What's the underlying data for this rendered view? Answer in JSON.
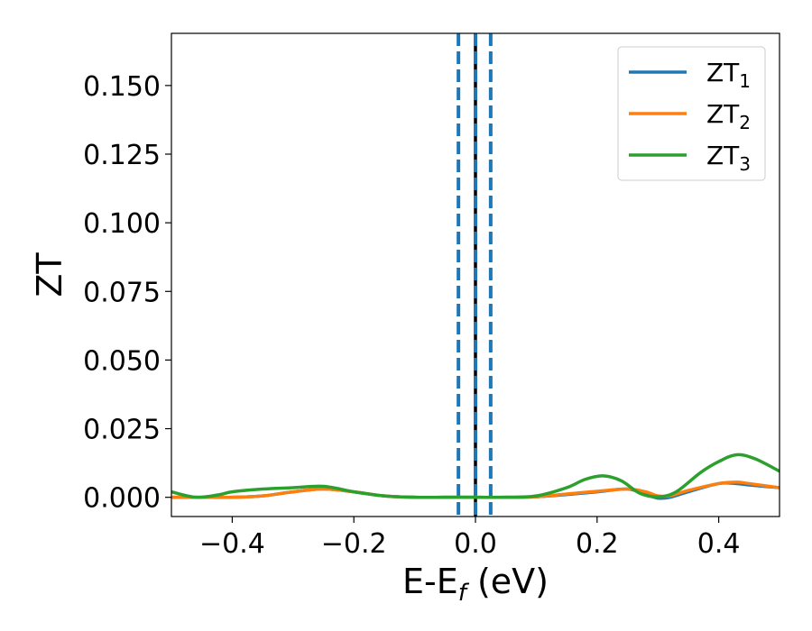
{
  "chart_data": {
    "type": "line",
    "title": "",
    "xlabel": "E-E",
    "xlabel_sub": "f",
    "xlabel_unit": " (eV)",
    "ylabel": "ZT",
    "xlim": [
      -0.5,
      0.5
    ],
    "ylim": [
      -0.007,
      0.169
    ],
    "x_ticks": [
      -0.4,
      -0.2,
      0.0,
      0.2,
      0.4
    ],
    "x_tick_labels": [
      "−0.4",
      "−0.2",
      "0.0",
      "0.2",
      "0.4"
    ],
    "y_ticks": [
      0.0,
      0.025,
      0.05,
      0.075,
      0.1,
      0.125,
      0.15
    ],
    "y_tick_labels": [
      "0.000",
      "0.025",
      "0.050",
      "0.075",
      "0.100",
      "0.125",
      "0.150"
    ],
    "grid": false,
    "legend_position": "top-right",
    "vertical_lines": [
      {
        "x": 0.0,
        "color": "#000000",
        "style": "solid"
      },
      {
        "x": -0.028,
        "color": "#1f77b4",
        "style": "dashed"
      },
      {
        "x": 0.0,
        "color": "#1f77b4",
        "style": "dashed"
      },
      {
        "x": 0.025,
        "color": "#1f77b4",
        "style": "dashed"
      }
    ],
    "series": [
      {
        "name": "ZT",
        "sub": "1",
        "color": "#1f77b4",
        "x": [
          -0.5,
          -0.45,
          -0.4,
          -0.35,
          -0.3,
          -0.25,
          -0.2,
          -0.15,
          -0.1,
          -0.05,
          0.0,
          0.05,
          0.1,
          0.15,
          0.2,
          0.25,
          0.28,
          0.3,
          0.32,
          0.35,
          0.4,
          0.43,
          0.45,
          0.5
        ],
        "y": [
          0.0,
          0.0,
          0.0,
          0.0005,
          0.002,
          0.003,
          0.002,
          0.0005,
          0.0,
          0.0,
          0.0,
          0.0,
          0.0002,
          0.001,
          0.002,
          0.003,
          0.001,
          -0.0003,
          0.0,
          0.002,
          0.005,
          0.005,
          0.0045,
          0.0035
        ]
      },
      {
        "name": "ZT",
        "sub": "2",
        "color": "#ff7f0e",
        "x": [
          -0.5,
          -0.45,
          -0.4,
          -0.35,
          -0.3,
          -0.25,
          -0.2,
          -0.15,
          -0.1,
          -0.05,
          0.0,
          0.05,
          0.1,
          0.15,
          0.2,
          0.25,
          0.28,
          0.3,
          0.32,
          0.35,
          0.4,
          0.43,
          0.45,
          0.5
        ],
        "y": [
          0.0,
          0.0,
          0.0,
          0.0005,
          0.002,
          0.003,
          0.002,
          0.0005,
          0.0,
          0.0,
          0.0,
          0.0,
          0.0002,
          0.0012,
          0.0022,
          0.003,
          0.002,
          0.0005,
          0.0006,
          0.0025,
          0.005,
          0.0055,
          0.005,
          0.0035
        ]
      },
      {
        "name": "ZT",
        "sub": "3",
        "color": "#2ca02c",
        "x": [
          -0.5,
          -0.46,
          -0.42,
          -0.4,
          -0.35,
          -0.3,
          -0.25,
          -0.2,
          -0.15,
          -0.1,
          -0.05,
          0.0,
          0.05,
          0.1,
          0.15,
          0.18,
          0.21,
          0.24,
          0.27,
          0.3,
          0.33,
          0.37,
          0.4,
          0.43,
          0.46,
          0.5
        ],
        "y": [
          0.002,
          0.0,
          0.001,
          0.002,
          0.003,
          0.0035,
          0.004,
          0.002,
          0.0005,
          0.0,
          0.0,
          0.0,
          0.0,
          0.0005,
          0.0035,
          0.0065,
          0.0078,
          0.006,
          0.0015,
          0.0002,
          0.002,
          0.009,
          0.013,
          0.0155,
          0.014,
          0.0095
        ]
      }
    ]
  }
}
